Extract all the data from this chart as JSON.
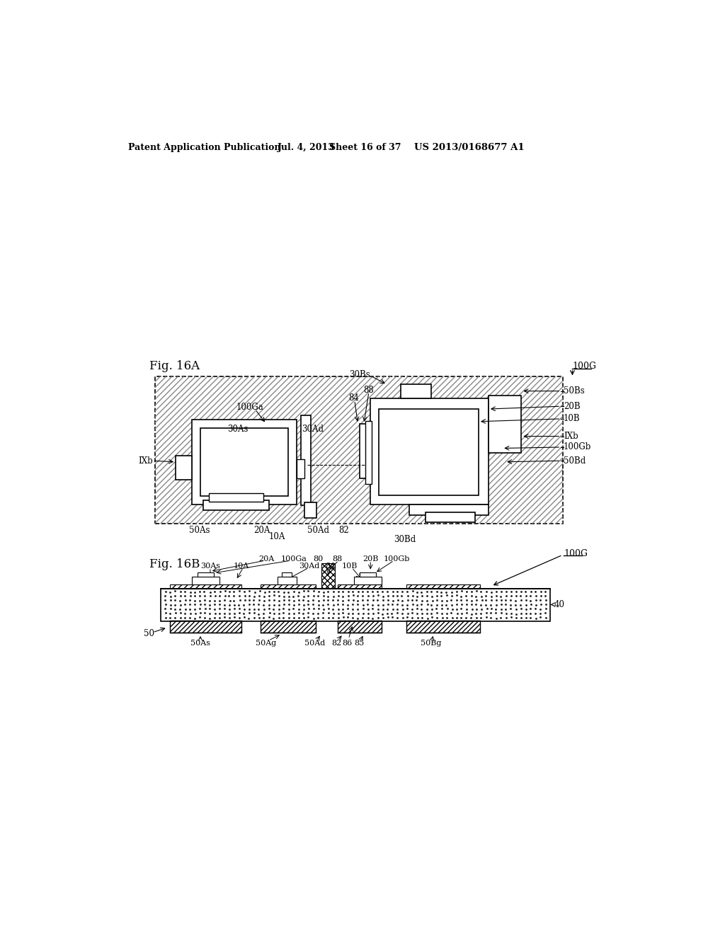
{
  "bg_color": "#ffffff",
  "header_text": "Patent Application Publication",
  "header_date": "Jul. 4, 2013",
  "header_sheet": "Sheet 16 of 37",
  "header_patent": "US 2013/0168677 A1",
  "fig_a_label": "Fig. 16A",
  "fig_b_label": "Fig. 16B",
  "label_fs": 8.5,
  "header_fs": 9.5
}
